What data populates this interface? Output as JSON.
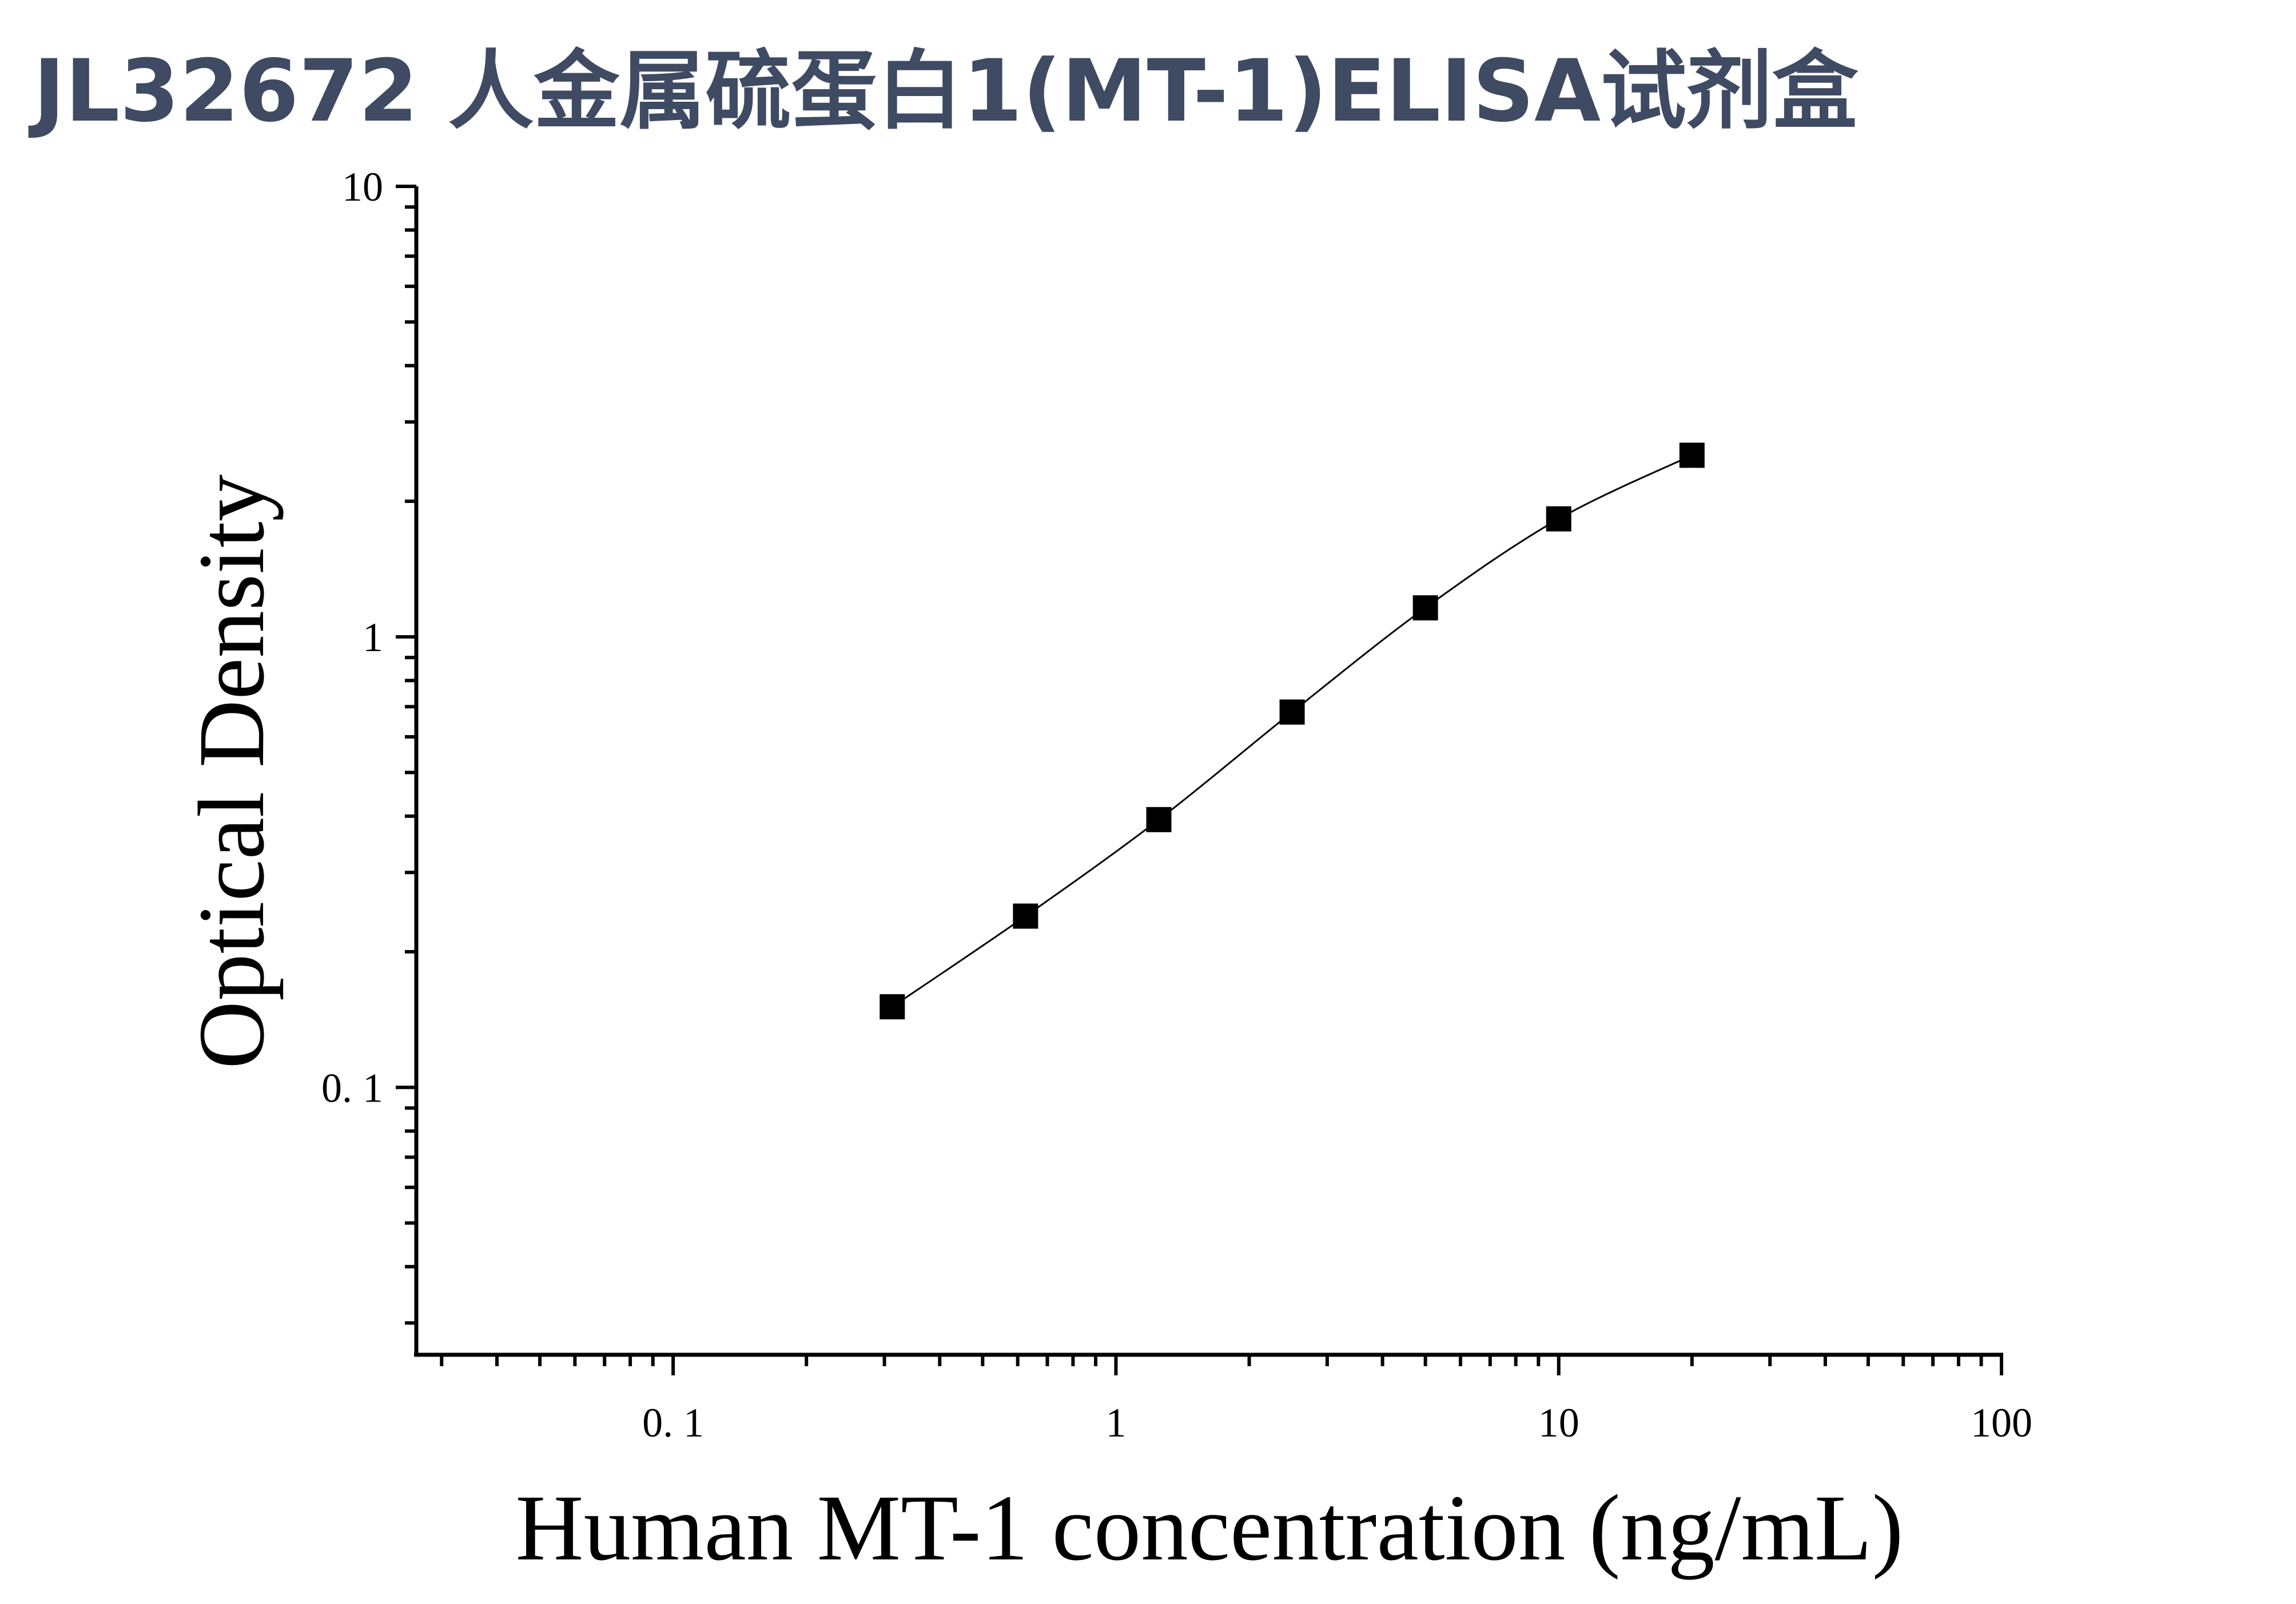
{
  "title": "JL32672 人金属硫蛋白1(MT-1)ELISA试剂盒",
  "chart_data": {
    "type": "scatter",
    "xlabel": "Human MT-1 concentration (ng/mL)",
    "ylabel": "Optical Density",
    "x_scale": "log",
    "y_scale": "log",
    "xlim": [
      0.0263,
      100
    ],
    "ylim": [
      0.0255,
      10
    ],
    "x_ticks": [
      {
        "value": 0.1,
        "label": "0. 1"
      },
      {
        "value": 1,
        "label": "1"
      },
      {
        "value": 10,
        "label": "10"
      },
      {
        "value": 100,
        "label": "100"
      }
    ],
    "y_ticks": [
      {
        "value": 0.1,
        "label": "0. 1"
      },
      {
        "value": 1,
        "label": "1"
      },
      {
        "value": 10,
        "label": "10"
      }
    ],
    "grid": false,
    "marker_color": "#000000",
    "series": [
      {
        "x": [
          0.3125,
          0.625,
          1.25,
          2.5,
          5,
          10,
          20
        ],
        "y": [
          0.151,
          0.24,
          0.393,
          0.681,
          1.16,
          1.828,
          2.53
        ],
        "fit_curve": true
      }
    ]
  }
}
